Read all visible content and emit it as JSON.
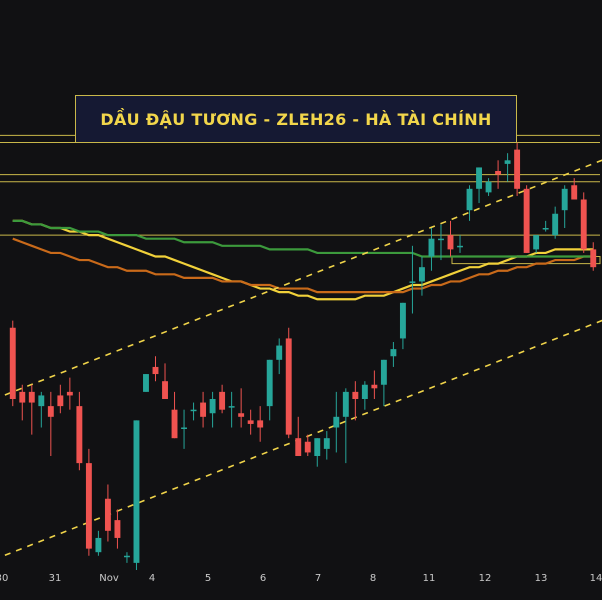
{
  "title": "DẦU ĐẬU TƯƠNG - ZLEH26 - HÀ TÀI CHÍNH",
  "colors": {
    "background": "#111113",
    "up": "#26a69a",
    "down": "#ef5350",
    "ma_yellow": "#f1d13a",
    "ma_orange": "#c96a1a",
    "ma_green": "#3c9a3c",
    "level_lines": "#c9b84a",
    "channel": "#f0d44a"
  },
  "x_axis": {
    "ticks": [
      "30",
      "31",
      "Nov",
      "4",
      "5",
      "6",
      "7",
      "8",
      "11",
      "12",
      "13",
      "14"
    ]
  },
  "chart_data": {
    "type": "candlestick",
    "title": "DẦU ĐẬU TƯƠNG - ZLEH26 - HÀ TÀI CHÍNH",
    "series": [
      {
        "values": [
          {
            "o": 58,
            "h": 60,
            "l": 36,
            "c": 38
          },
          {
            "o": 40,
            "h": 42,
            "l": 32,
            "c": 37
          },
          {
            "o": 40,
            "h": 42,
            "l": 28,
            "c": 37
          },
          {
            "o": 36,
            "h": 40,
            "l": 30,
            "c": 39
          },
          {
            "o": 36,
            "h": 40,
            "l": 22,
            "c": 33
          },
          {
            "o": 39,
            "h": 42,
            "l": 34,
            "c": 36
          },
          {
            "o": 40,
            "h": 44,
            "l": 35,
            "c": 39
          },
          {
            "o": 36,
            "h": 40,
            "l": 18,
            "c": 20
          },
          {
            "o": 20,
            "h": 24,
            "l": -6,
            "c": -4
          },
          {
            "o": -5,
            "h": 1,
            "l": -6,
            "c": -1
          },
          {
            "o": 10,
            "h": 14,
            "l": -2,
            "c": 1
          },
          {
            "o": 4,
            "h": 7,
            "l": -4,
            "c": -1
          },
          {
            "o": -6,
            "h": -5,
            "l": -8,
            "c": -6
          },
          {
            "o": -8,
            "h": 32,
            "l": -10,
            "c": 32
          },
          {
            "o": 40,
            "h": 45,
            "l": 40,
            "c": 45
          },
          {
            "o": 47,
            "h": 50,
            "l": 43,
            "c": 45
          },
          {
            "o": 43,
            "h": 48,
            "l": 38,
            "c": 38
          },
          {
            "o": 35,
            "h": 40,
            "l": 27,
            "c": 27
          },
          {
            "o": 30,
            "h": 35,
            "l": 24,
            "c": 30
          },
          {
            "o": 35,
            "h": 37,
            "l": 32,
            "c": 35
          },
          {
            "o": 37,
            "h": 40,
            "l": 30,
            "c": 33
          },
          {
            "o": 34,
            "h": 40,
            "l": 30,
            "c": 38
          },
          {
            "o": 40,
            "h": 42,
            "l": 34,
            "c": 35
          },
          {
            "o": 36,
            "h": 40,
            "l": 30,
            "c": 36
          },
          {
            "o": 34,
            "h": 41,
            "l": 30,
            "c": 33
          },
          {
            "o": 32,
            "h": 35,
            "l": 28,
            "c": 31
          },
          {
            "o": 32,
            "h": 36,
            "l": 26,
            "c": 30
          },
          {
            "o": 36,
            "h": 49,
            "l": 32,
            "c": 49
          },
          {
            "o": 49,
            "h": 55,
            "l": 45,
            "c": 53
          },
          {
            "o": 55,
            "h": 58,
            "l": 27,
            "c": 28
          },
          {
            "o": 27,
            "h": 33,
            "l": 22,
            "c": 22
          },
          {
            "o": 26,
            "h": 28,
            "l": 22,
            "c": 23
          },
          {
            "o": 22,
            "h": 27,
            "l": 19,
            "c": 27
          },
          {
            "o": 24,
            "h": 29,
            "l": 21,
            "c": 27
          },
          {
            "o": 30,
            "h": 40,
            "l": 23,
            "c": 33
          },
          {
            "o": 33,
            "h": 41,
            "l": 20,
            "c": 40
          },
          {
            "o": 40,
            "h": 43,
            "l": 32,
            "c": 38
          },
          {
            "o": 38,
            "h": 43,
            "l": 35,
            "c": 42
          },
          {
            "o": 42,
            "h": 46,
            "l": 38,
            "c": 41
          },
          {
            "o": 42,
            "h": 49,
            "l": 36,
            "c": 49
          },
          {
            "o": 50,
            "h": 54,
            "l": 47,
            "c": 52
          },
          {
            "o": 55,
            "h": 65,
            "l": 52,
            "c": 65
          },
          {
            "o": 71,
            "h": 81,
            "l": 62,
            "c": 71
          },
          {
            "o": 71,
            "h": 78,
            "l": 67,
            "c": 75
          },
          {
            "o": 78,
            "h": 86,
            "l": 74,
            "c": 83
          },
          {
            "o": 83,
            "h": 87,
            "l": 77,
            "c": 83
          },
          {
            "o": 84,
            "h": 88,
            "l": 78,
            "c": 80
          },
          {
            "o": 81,
            "h": 84,
            "l": 79,
            "c": 81
          },
          {
            "o": 91,
            "h": 98,
            "l": 88,
            "c": 97
          },
          {
            "o": 97,
            "h": 103,
            "l": 93,
            "c": 103
          },
          {
            "o": 96,
            "h": 100,
            "l": 95,
            "c": 99
          },
          {
            "o": 102,
            "h": 105,
            "l": 97,
            "c": 101
          },
          {
            "o": 104,
            "h": 107,
            "l": 99,
            "c": 105
          },
          {
            "o": 108,
            "h": 110,
            "l": 95,
            "c": 97
          },
          {
            "o": 97,
            "h": 98,
            "l": 79,
            "c": 79
          },
          {
            "o": 80,
            "h": 84,
            "l": 79,
            "c": 84
          },
          {
            "o": 86,
            "h": 88,
            "l": 85,
            "c": 86
          },
          {
            "o": 84,
            "h": 92,
            "l": 83,
            "c": 90
          },
          {
            "o": 91,
            "h": 98,
            "l": 86,
            "c": 97
          },
          {
            "o": 98,
            "h": 100,
            "l": 96,
            "c": 94
          },
          {
            "o": 94,
            "h": 96,
            "l": 79,
            "c": 80
          },
          {
            "o": 80,
            "h": 82,
            "l": 74,
            "c": 75
          }
        ]
      }
    ],
    "moving_averages": [
      {
        "values": [
          88,
          88,
          87,
          87,
          86,
          86,
          85,
          85,
          84,
          84,
          83,
          82,
          81,
          80,
          79,
          78,
          78,
          77,
          76,
          75,
          74,
          73,
          72,
          71,
          71,
          70,
          69,
          69,
          68,
          68,
          67,
          67,
          66,
          66,
          66,
          66,
          66,
          67,
          67,
          67,
          68,
          69,
          70,
          70,
          71,
          72,
          73,
          74,
          75,
          75,
          76,
          76,
          77,
          78,
          78,
          79,
          79,
          80,
          80,
          80,
          80,
          80
        ]
      },
      {
        "values": [
          83,
          82,
          81,
          80,
          79,
          79,
          78,
          77,
          77,
          76,
          75,
          75,
          74,
          74,
          74,
          73,
          73,
          73,
          72,
          72,
          72,
          72,
          71,
          71,
          71,
          70,
          70,
          70,
          69,
          69,
          69,
          69,
          68,
          68,
          68,
          68,
          68,
          68,
          68,
          68,
          68,
          68,
          69,
          69,
          70,
          70,
          71,
          71,
          72,
          73,
          73,
          74,
          74,
          75,
          75,
          76,
          76,
          77,
          77,
          77,
          78,
          78
        ]
      },
      {
        "values": [
          88,
          88,
          87,
          87,
          86,
          86,
          86,
          85,
          85,
          85,
          84,
          84,
          84,
          84,
          83,
          83,
          83,
          83,
          82,
          82,
          82,
          82,
          81,
          81,
          81,
          81,
          81,
          80,
          80,
          80,
          80,
          80,
          79,
          79,
          79,
          79,
          79,
          79,
          79,
          79,
          79,
          79,
          79,
          78,
          78,
          78,
          78,
          78,
          78,
          78,
          78,
          78,
          78,
          78,
          78,
          78,
          78,
          78,
          78,
          78,
          78,
          78
        ]
      }
    ],
    "horizontal_levels": [
      112,
      110,
      101,
      99,
      84
    ],
    "zone": {
      "from": 78,
      "to": 76
    },
    "channel_slope": 1.05,
    "channel_intercepts": [
      -5,
      40
    ],
    "ylim": [
      -10,
      150
    ],
    "grid": false
  }
}
